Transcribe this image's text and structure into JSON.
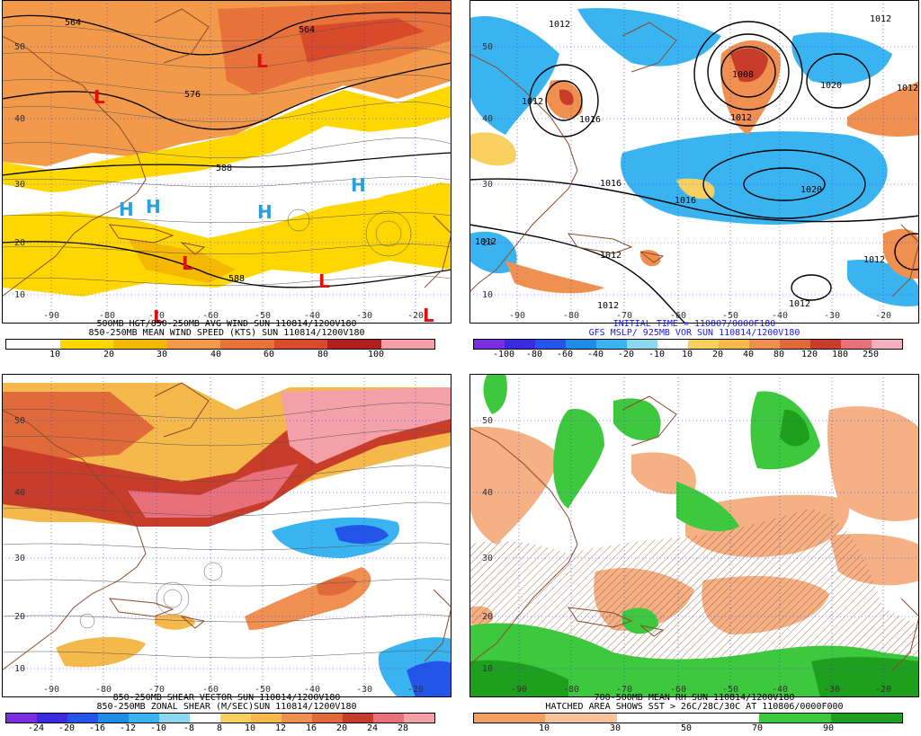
{
  "colors": {
    "map_border": "#000000",
    "coast": "#8b4a2a",
    "grid": "#3333cc",
    "contour": "#000000",
    "caption_black": "#000000",
    "caption_blue": "#1a1ae6",
    "high_symbol": "#2aa0e0",
    "low_symbol": "#e01010"
  },
  "panels": [
    {
      "id": "wind",
      "lat_labels": [
        "50",
        "40",
        "30",
        "20",
        "10"
      ],
      "lon_labels": [
        "-90",
        "-80",
        "-70",
        "-60",
        "-50",
        "-40",
        "-30",
        "-20"
      ],
      "contour_labels": [
        "564",
        "564",
        "576",
        "588",
        "588"
      ],
      "highs": [
        "H",
        "H",
        "H",
        "H"
      ],
      "lows": [
        "L",
        "L",
        "L",
        "L",
        "L",
        "L"
      ],
      "caption_lines": [
        "500MB HGT/850-250MB AVG WIND SUN 110814/1200V180",
        "850-250MB MEAN WIND SPEED (KTS) SUN 110814/1200V180"
      ],
      "colorbar_labels": [
        "10",
        "20",
        "30",
        "40",
        "60",
        "80",
        "100"
      ],
      "colorbar_colors": [
        "#ffffff",
        "#ffd700",
        "#f5b800",
        "#f29a4a",
        "#e8733a",
        "#d94a2a",
        "#b31e1e",
        "#f4a0a8"
      ]
    },
    {
      "id": "vort",
      "lat_labels": [
        "50",
        "40",
        "30",
        "20",
        "10"
      ],
      "lon_labels": [
        "-90",
        "-80",
        "-70",
        "-60",
        "-50",
        "-40",
        "-30",
        "-20"
      ],
      "contour_labels": [
        "1012",
        "1012",
        "1016",
        "1012",
        "1008",
        "1020",
        "1012",
        "1016",
        "1016",
        "1020",
        "1012",
        "1012",
        "1012",
        "1012",
        "1012",
        "1012"
      ],
      "caption_lines": [
        "INITIAL TIME = 110807/0000F180",
        "GFS MSLP/ 925MB VOR SUN 110814/1200V180"
      ],
      "colorbar_labels": [
        "-100",
        "-80",
        "-60",
        "-40",
        "-20",
        "-10",
        "10",
        "20",
        "40",
        "80",
        "120",
        "180",
        "250"
      ],
      "colorbar_colors": [
        "#7a2ee0",
        "#3a2ae0",
        "#2255e8",
        "#1f8ce8",
        "#3ab4f0",
        "#8cd8f0",
        "#ffffff",
        "#f8d060",
        "#f5b84a",
        "#f09050",
        "#e06a3a",
        "#c83c2a",
        "#e8707a",
        "#f4b0c0"
      ]
    },
    {
      "id": "shear",
      "lat_labels": [
        "50",
        "40",
        "30",
        "20",
        "10"
      ],
      "lon_labels": [
        "-90",
        "-80",
        "-70",
        "-60",
        "-50",
        "-40",
        "-30",
        "-20"
      ],
      "caption_lines": [
        "850-250MB SHEAR VECTOR SUN 110814/1200V180",
        "850-250MB ZONAL SHEAR (M/SEC)SUN 110814/1200V180"
      ],
      "colorbar_labels": [
        "-24",
        "-20",
        "-16",
        "-12",
        "-10",
        "-8",
        "8",
        "10",
        "12",
        "16",
        "20",
        "24",
        "28"
      ],
      "colorbar_colors": [
        "#7a2ee0",
        "#3a2ae0",
        "#2255e8",
        "#1f8ce8",
        "#3ab4f0",
        "#8cd8f0",
        "#ffffff",
        "#f8d060",
        "#f5b84a",
        "#f09050",
        "#e06a3a",
        "#c83c2a",
        "#e8707a",
        "#f4a0a8"
      ]
    },
    {
      "id": "rh",
      "lat_labels": [
        "50",
        "40",
        "30",
        "20",
        "10"
      ],
      "lon_labels": [
        "-90",
        "-80",
        "-70",
        "-60",
        "-50",
        "-40",
        "-30",
        "-20"
      ],
      "caption_lines": [
        "700-500MB MEAN RH SUN 110814/1200V180",
        "HATCHED AREA SHOWS SST > 26C/28C/30C AT 110806/0000F000"
      ],
      "colorbar_labels": [
        "10",
        "30",
        "50",
        "70",
        "90"
      ],
      "colorbar_colors": [
        "#f2a060",
        "#f5c49a",
        "#ffffff",
        "#ffffff",
        "#3ec83e",
        "#1ea01e"
      ]
    }
  ]
}
